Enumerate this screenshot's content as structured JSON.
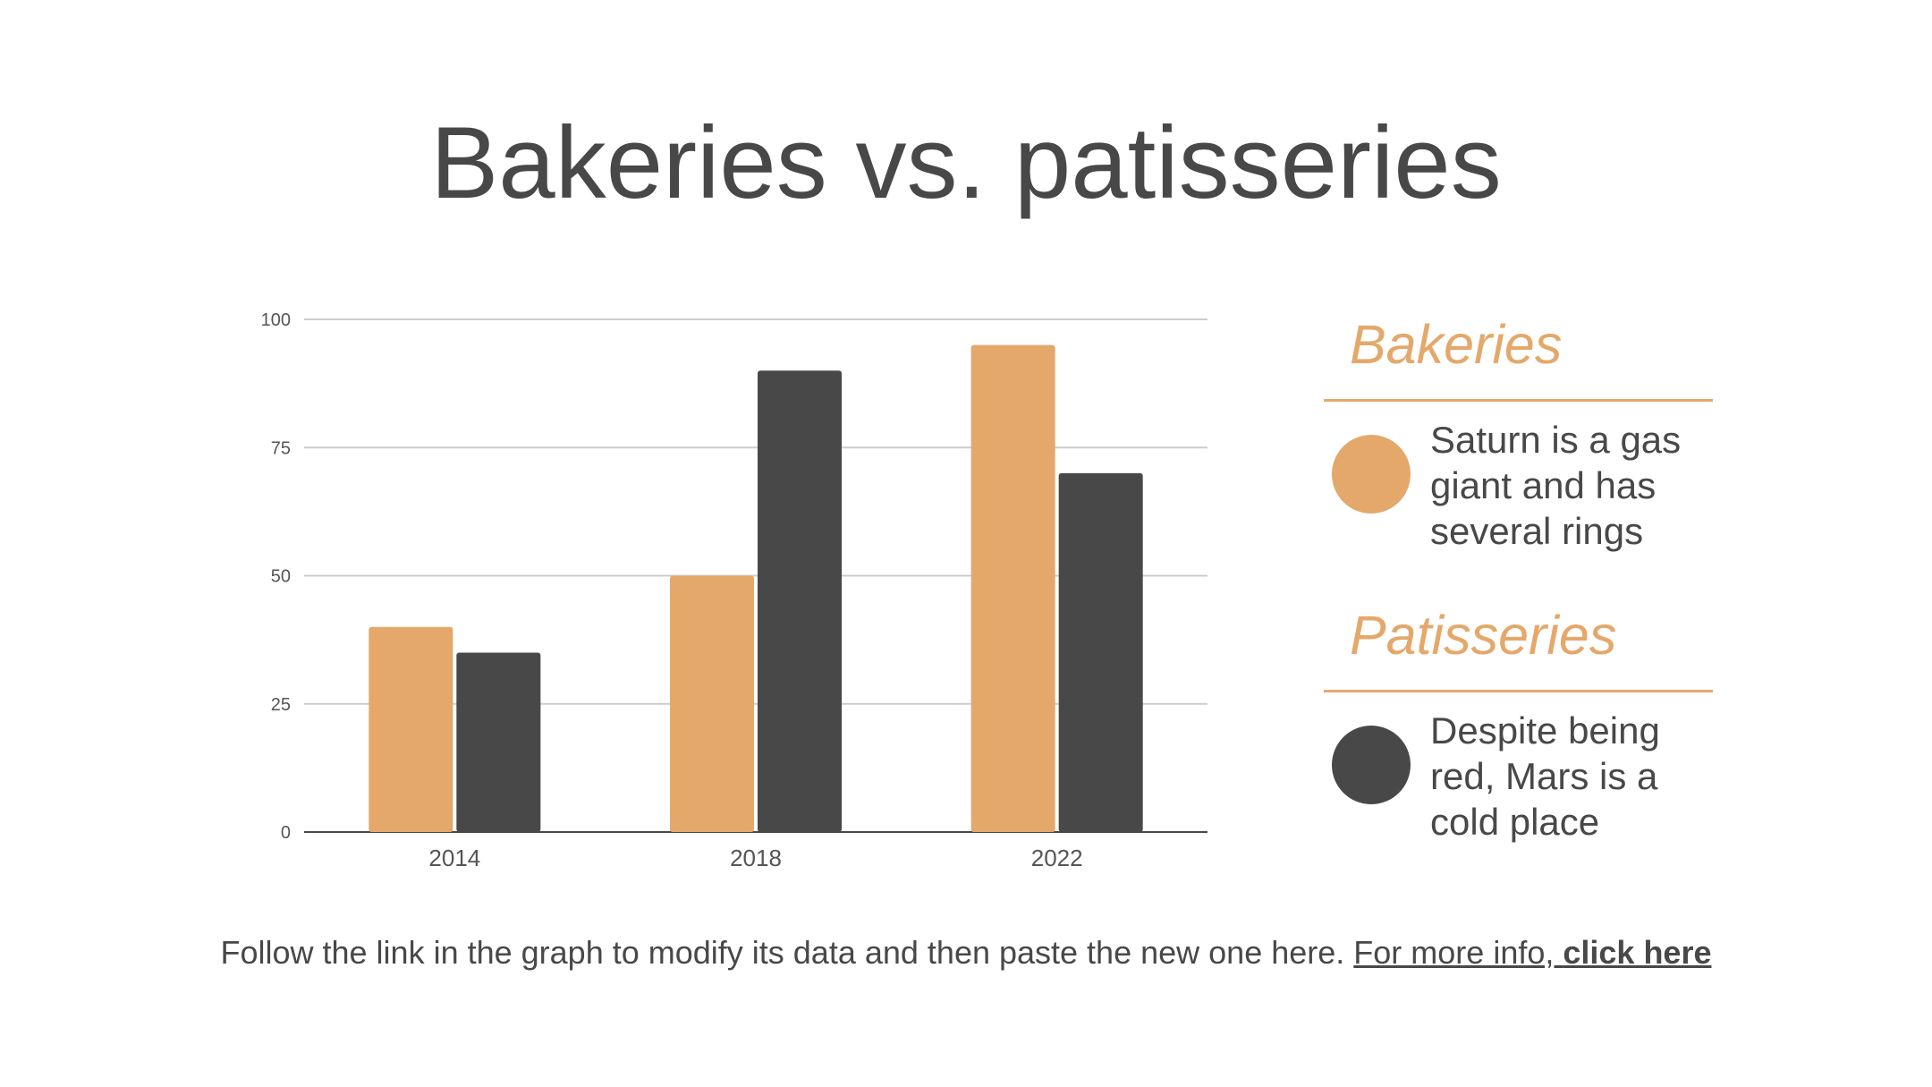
{
  "slide": {
    "title": "Bakeries vs. patisseries"
  },
  "chart_data": {
    "type": "bar",
    "categories": [
      "2014",
      "2018",
      "2022"
    ],
    "series": [
      {
        "name": "Bakeries",
        "values": [
          40,
          50,
          95
        ],
        "color": "#e4a86b"
      },
      {
        "name": "Patisseries",
        "values": [
          35,
          90,
          70
        ],
        "color": "#484848"
      }
    ],
    "ylim": [
      0,
      100
    ],
    "yticks": [
      "0",
      "25",
      "50",
      "75",
      "100"
    ],
    "grid": true,
    "legend": "right"
  },
  "legend": {
    "bakeries": {
      "heading": "Bakeries",
      "description": "Saturn is a gas giant and has several rings",
      "color": "#e4a86b"
    },
    "patisseries": {
      "heading": "Patisseries",
      "description": "Despite being red, Mars is a cold place",
      "color": "#484848"
    }
  },
  "footer": {
    "text": "Follow the link in the graph to modify its data and then paste the new one here.",
    "link_prefix": "For more info, ",
    "link_bold": "click here"
  }
}
